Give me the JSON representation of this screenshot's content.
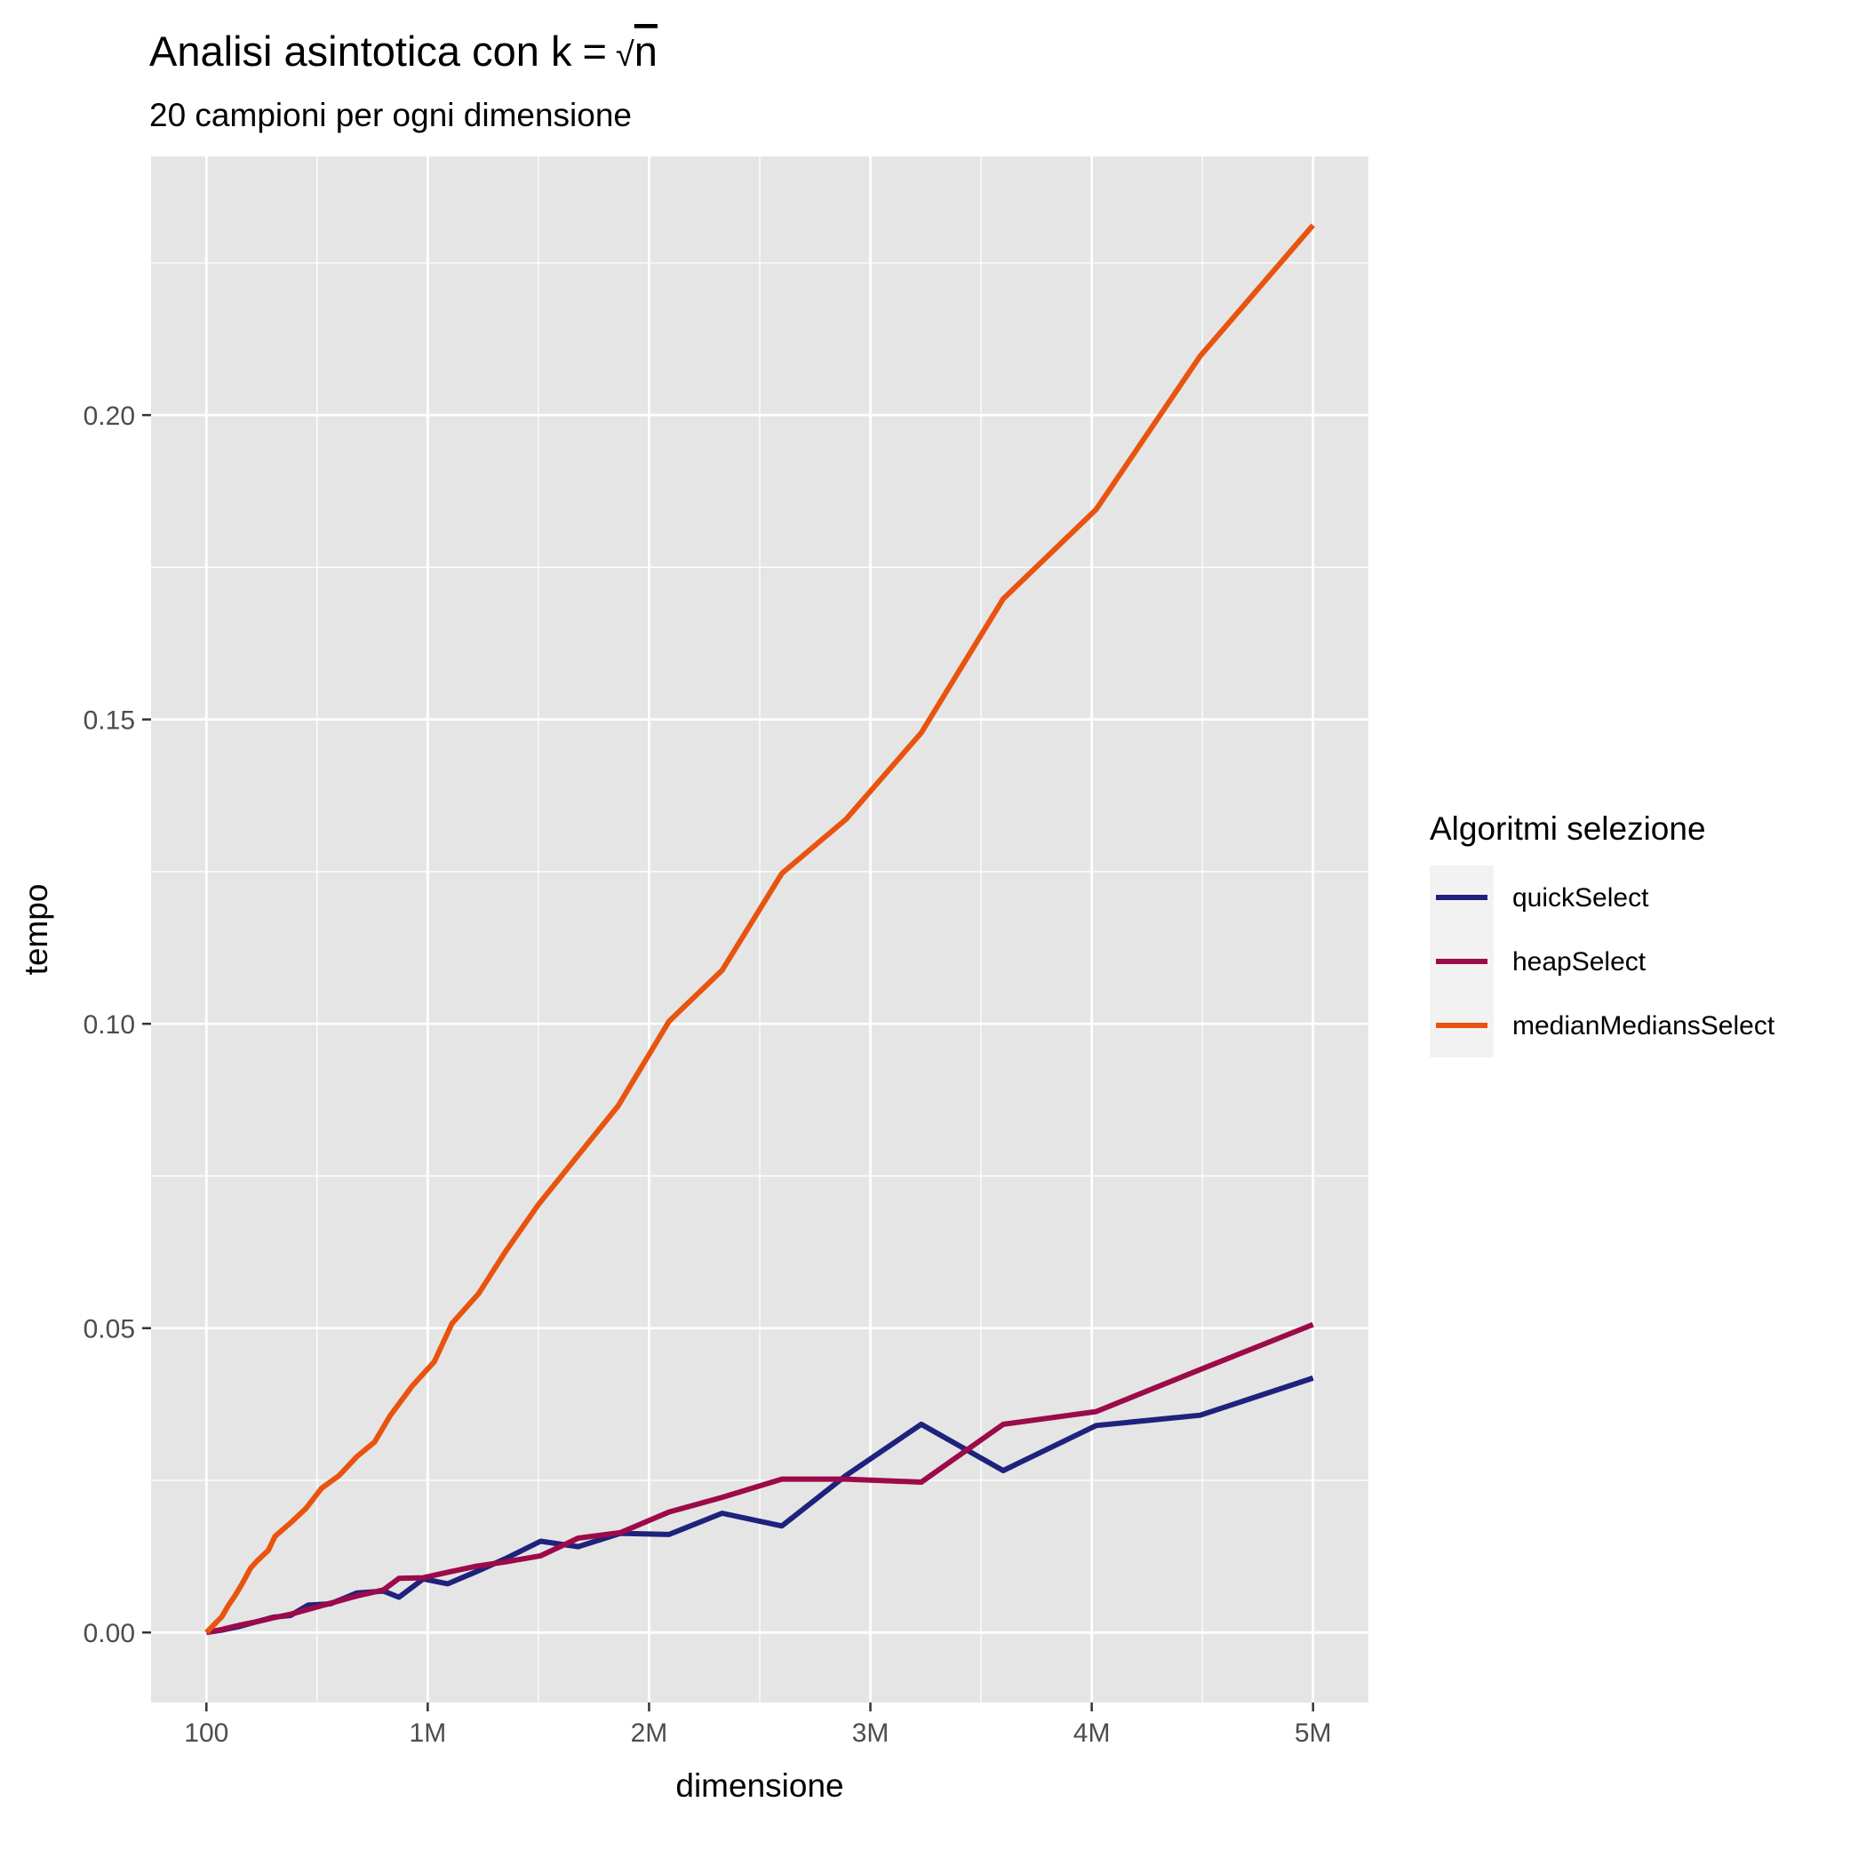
{
  "chart_data": {
    "type": "line",
    "title_prefix": "Analisi asintotica con k",
    "title_formula_symbol": "√",
    "title_formula_var": "n",
    "subtitle": "20 campioni per ogni dimensione",
    "xlabel": "dimensione",
    "ylabel": "tempo",
    "xlim": [
      -250000,
      5250000
    ],
    "ylim": [
      -0.0115,
      0.2425
    ],
    "x_ticks": [
      {
        "value": 100,
        "label": "100"
      },
      {
        "value": 1000000,
        "label": "1M"
      },
      {
        "value": 2000000,
        "label": "2M"
      },
      {
        "value": 3000000,
        "label": "3M"
      },
      {
        "value": 4000000,
        "label": "4M"
      },
      {
        "value": 5000000,
        "label": "5M"
      }
    ],
    "y_ticks": [
      {
        "value": 0.0,
        "label": "0.00"
      },
      {
        "value": 0.05,
        "label": "0.05"
      },
      {
        "value": 0.1,
        "label": "0.10"
      },
      {
        "value": 0.15,
        "label": "0.15"
      },
      {
        "value": 0.2,
        "label": "0.20"
      }
    ],
    "grid": true,
    "legend_title": "Algoritmi selezione",
    "legend_position": "right",
    "series": [
      {
        "name": "quickSelect",
        "color": "#1f227c",
        "points": [
          [
            100,
            0
          ],
          [
            70000,
            0.0004
          ],
          [
            150000,
            0.001
          ],
          [
            230000,
            0.0018
          ],
          [
            300000,
            0.0025
          ],
          [
            380000,
            0.0028
          ],
          [
            460000,
            0.0045
          ],
          [
            560000,
            0.0047
          ],
          [
            680000,
            0.0065
          ],
          [
            800000,
            0.0068
          ],
          [
            870000,
            0.0058
          ],
          [
            980000,
            0.0088
          ],
          [
            1090000,
            0.008
          ],
          [
            1220000,
            0.01
          ],
          [
            1350000,
            0.0121
          ],
          [
            1510000,
            0.015
          ],
          [
            1680000,
            0.0141
          ],
          [
            1870000,
            0.0163
          ],
          [
            2090000,
            0.0161
          ],
          [
            2330000,
            0.0196
          ],
          [
            2600000,
            0.0175
          ],
          [
            2890000,
            0.0258
          ],
          [
            3230000,
            0.0342
          ],
          [
            3600000,
            0.0266
          ],
          [
            4020000,
            0.034
          ],
          [
            4490000,
            0.0357
          ],
          [
            5000000,
            0.0418
          ]
        ]
      },
      {
        "name": "heapSelect",
        "color": "#9c0a4a",
        "points": [
          [
            100,
            0
          ],
          [
            70000,
            0.0005
          ],
          [
            150000,
            0.0012
          ],
          [
            230000,
            0.0018
          ],
          [
            300000,
            0.0024
          ],
          [
            380000,
            0.003
          ],
          [
            460000,
            0.0038
          ],
          [
            560000,
            0.0048
          ],
          [
            680000,
            0.006
          ],
          [
            800000,
            0.007
          ],
          [
            870000,
            0.0089
          ],
          [
            980000,
            0.009
          ],
          [
            1090000,
            0.0099
          ],
          [
            1220000,
            0.0109
          ],
          [
            1350000,
            0.0116
          ],
          [
            1510000,
            0.0126
          ],
          [
            1680000,
            0.0155
          ],
          [
            1870000,
            0.0164
          ],
          [
            2090000,
            0.0198
          ],
          [
            2330000,
            0.0222
          ],
          [
            2600000,
            0.0252
          ],
          [
            2890000,
            0.0252
          ],
          [
            3230000,
            0.0247
          ],
          [
            3600000,
            0.0342
          ],
          [
            4020000,
            0.0363
          ],
          [
            4490000,
            0.0432
          ],
          [
            5000000,
            0.0506
          ]
        ]
      },
      {
        "name": "medianMediansSelect",
        "color": "#e8540e",
        "points": [
          [
            100,
            0
          ],
          [
            70000,
            0.0026
          ],
          [
            100000,
            0.0045
          ],
          [
            130000,
            0.0061
          ],
          [
            160000,
            0.0079
          ],
          [
            200000,
            0.0106
          ],
          [
            230000,
            0.0118
          ],
          [
            280000,
            0.0135
          ],
          [
            310000,
            0.0158
          ],
          [
            380000,
            0.018
          ],
          [
            450000,
            0.0204
          ],
          [
            520000,
            0.0237
          ],
          [
            600000,
            0.0258
          ],
          [
            680000,
            0.0289
          ],
          [
            760000,
            0.0313
          ],
          [
            830000,
            0.0356
          ],
          [
            930000,
            0.0405
          ],
          [
            1030000,
            0.0445
          ],
          [
            1110000,
            0.0508
          ],
          [
            1230000,
            0.0557
          ],
          [
            1350000,
            0.0625
          ],
          [
            1500000,
            0.0703
          ],
          [
            1680000,
            0.0784
          ],
          [
            1860000,
            0.0865
          ],
          [
            2090000,
            0.1004
          ],
          [
            2330000,
            0.1088
          ],
          [
            2600000,
            0.1247
          ],
          [
            2890000,
            0.1336
          ],
          [
            3230000,
            0.1478
          ],
          [
            3600000,
            0.1698
          ],
          [
            4020000,
            0.1845
          ],
          [
            4490000,
            0.2097
          ],
          [
            5000000,
            0.2312
          ]
        ]
      }
    ]
  }
}
